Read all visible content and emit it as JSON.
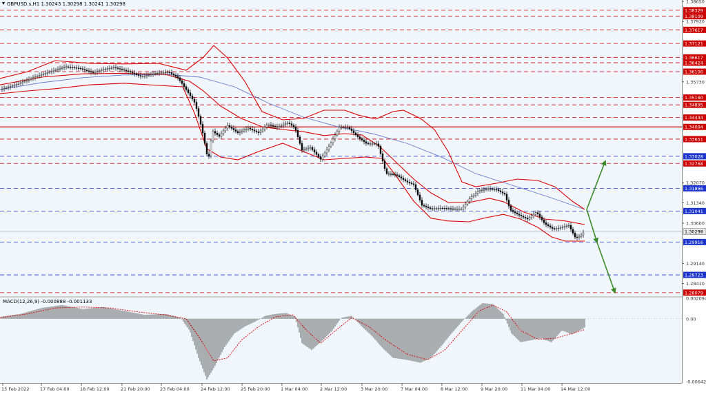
{
  "window": {
    "symbol_line": "GBPUSD.s,H1  1.30243 1.30298 1.30241 1.30298",
    "macd_line": "MACD(12,26,9) -0.000888 -0.001133"
  },
  "colors": {
    "background": "#f0f6fc",
    "grid_red": "#cc0000",
    "grid_blue": "#1a33cc",
    "bollinger": "#dd0000",
    "ma_line": "#6677cc",
    "arrow": "#3a8a2a",
    "price_tag": "#e8e8e8"
  },
  "chart_data": [
    {
      "type": "candlestick",
      "title": "GBPUSD.s,H1",
      "ylim": [
        1.2795,
        1.3865
      ],
      "price_ticks": [
        "1.38650",
        "1.37920",
        "1.35730",
        "1.32070",
        "1.31340",
        "1.30600",
        "1.29140",
        "1.28410"
      ],
      "x_labels": [
        "15 Feb 2022",
        "17 Feb 04:00",
        "18 Feb 12:00",
        "21 Feb 20:00",
        "23 Feb 04:00",
        "24 Feb 12:00",
        "25 Feb 20:00",
        "1 Mar 04:00",
        "2 Mar 12:00",
        "3 Mar 20:00",
        "7 Mar 04:00",
        "8 Mar 12:00",
        "9 Mar 20:00",
        "11 Mar 04:00",
        "14 Mar 12:00"
      ],
      "current_price": "1.30298",
      "last_quote": {
        "bid": 1.30243,
        "high": 1.30298,
        "low": 1.30241,
        "close": 1.30298
      },
      "horizontal_levels": [
        {
          "label": "1.38329",
          "value": 1.38329,
          "color": "red"
        },
        {
          "label": "1.38109",
          "value": 1.38109,
          "color": "red"
        },
        {
          "label": "1.37617",
          "value": 1.37617,
          "color": "red"
        },
        {
          "label": "1.37121",
          "value": 1.37121,
          "color": "red"
        },
        {
          "label": "1.36617",
          "value": 1.36617,
          "color": "red"
        },
        {
          "label": "1.36424",
          "value": 1.36424,
          "color": "red"
        },
        {
          "label": "1.36100",
          "value": 1.361,
          "color": "red"
        },
        {
          "label": "1.35160",
          "value": 1.3516,
          "color": "red"
        },
        {
          "label": "1.34895",
          "value": 1.34895,
          "color": "red"
        },
        {
          "label": "1.34434",
          "value": 1.34434,
          "color": "red"
        },
        {
          "label": "1.34094",
          "value": 1.34094,
          "color": "red",
          "solid": true
        },
        {
          "label": "1.33651",
          "value": 1.33651,
          "color": "red"
        },
        {
          "label": "1.33028",
          "value": 1.33028,
          "color": "blue"
        },
        {
          "label": "1.32768",
          "value": 1.32768,
          "color": "red"
        },
        {
          "label": "1.31866",
          "value": 1.31866,
          "color": "blue"
        },
        {
          "label": "1.31041",
          "value": 1.31041,
          "color": "blue"
        },
        {
          "label": "1.29916",
          "value": 1.29916,
          "color": "blue"
        },
        {
          "label": "1.28723",
          "value": 1.28723,
          "color": "blue"
        },
        {
          "label": "1.28079",
          "value": 1.28079,
          "color": "red"
        }
      ],
      "price_path": [
        [
          0,
          1.3545
        ],
        [
          15,
          1.3556
        ],
        [
          35,
          1.3575
        ],
        [
          55,
          1.3595
        ],
        [
          75,
          1.3612
        ],
        [
          95,
          1.3628
        ],
        [
          115,
          1.3622
        ],
        [
          135,
          1.3606
        ],
        [
          150,
          1.3618
        ],
        [
          165,
          1.3625
        ],
        [
          185,
          1.3612
        ],
        [
          205,
          1.3592
        ],
        [
          225,
          1.3604
        ],
        [
          245,
          1.3608
        ],
        [
          258,
          1.3588
        ],
        [
          270,
          1.3545
        ],
        [
          283,
          1.3495
        ],
        [
          293,
          1.34
        ],
        [
          302,
          1.3285
        ],
        [
          308,
          1.3395
        ],
        [
          318,
          1.3375
        ],
        [
          330,
          1.3415
        ],
        [
          345,
          1.3388
        ],
        [
          360,
          1.3405
        ],
        [
          375,
          1.3388
        ],
        [
          388,
          1.3418
        ],
        [
          402,
          1.3408
        ],
        [
          418,
          1.3425
        ],
        [
          428,
          1.3405
        ],
        [
          438,
          1.3325
        ],
        [
          450,
          1.3335
        ],
        [
          465,
          1.3292
        ],
        [
          478,
          1.3342
        ],
        [
          492,
          1.3408
        ],
        [
          505,
          1.3408
        ],
        [
          518,
          1.3375
        ],
        [
          532,
          1.3348
        ],
        [
          548,
          1.3348
        ],
        [
          560,
          1.324
        ],
        [
          575,
          1.3235
        ],
        [
          590,
          1.321
        ],
        [
          600,
          1.32
        ],
        [
          612,
          1.3125
        ],
        [
          625,
          1.3112
        ],
        [
          640,
          1.3115
        ],
        [
          655,
          1.3112
        ],
        [
          670,
          1.3112
        ],
        [
          682,
          1.3152
        ],
        [
          695,
          1.3178
        ],
        [
          708,
          1.3185
        ],
        [
          720,
          1.3182
        ],
        [
          732,
          1.3165
        ],
        [
          740,
          1.3108
        ],
        [
          752,
          1.309
        ],
        [
          765,
          1.3075
        ],
        [
          778,
          1.31
        ],
        [
          790,
          1.3058
        ],
        [
          803,
          1.3038
        ],
        [
          815,
          1.3045
        ],
        [
          825,
          1.3052
        ],
        [
          835,
          1.3005
        ],
        [
          842,
          1.3015
        ],
        [
          848,
          1.30298
        ]
      ],
      "bollinger_upper": [
        [
          0,
          1.3585
        ],
        [
          40,
          1.361
        ],
        [
          80,
          1.365
        ],
        [
          130,
          1.364
        ],
        [
          180,
          1.3638
        ],
        [
          230,
          1.364
        ],
        [
          270,
          1.3615
        ],
        [
          295,
          1.3662
        ],
        [
          310,
          1.3705
        ],
        [
          330,
          1.366
        ],
        [
          355,
          1.3575
        ],
        [
          380,
          1.3465
        ],
        [
          410,
          1.3435
        ],
        [
          440,
          1.344
        ],
        [
          470,
          1.347
        ],
        [
          500,
          1.347
        ],
        [
          520,
          1.3452
        ],
        [
          545,
          1.3438
        ],
        [
          570,
          1.3465
        ],
        [
          585,
          1.347
        ],
        [
          610,
          1.344
        ],
        [
          630,
          1.34
        ],
        [
          650,
          1.332
        ],
        [
          670,
          1.321
        ],
        [
          690,
          1.3192
        ],
        [
          720,
          1.3205
        ],
        [
          750,
          1.322
        ],
        [
          780,
          1.3215
        ],
        [
          805,
          1.3192
        ],
        [
          830,
          1.314
        ],
        [
          848,
          1.311
        ]
      ],
      "bollinger_middle": [
        [
          0,
          1.3562
        ],
        [
          60,
          1.359
        ],
        [
          120,
          1.3602
        ],
        [
          180,
          1.3604
        ],
        [
          240,
          1.36
        ],
        [
          275,
          1.3575
        ],
        [
          295,
          1.354
        ],
        [
          320,
          1.3485
        ],
        [
          350,
          1.344
        ],
        [
          380,
          1.341
        ],
        [
          410,
          1.34
        ],
        [
          440,
          1.3392
        ],
        [
          470,
          1.3378
        ],
        [
          500,
          1.3385
        ],
        [
          525,
          1.338
        ],
        [
          550,
          1.334
        ],
        [
          575,
          1.328
        ],
        [
          600,
          1.322
        ],
        [
          625,
          1.317
        ],
        [
          650,
          1.3135
        ],
        [
          680,
          1.3135
        ],
        [
          710,
          1.315
        ],
        [
          730,
          1.3138
        ],
        [
          760,
          1.31
        ],
        [
          790,
          1.3075
        ],
        [
          820,
          1.3068
        ],
        [
          848,
          1.3055
        ]
      ],
      "bollinger_lower": [
        [
          0,
          1.353
        ],
        [
          40,
          1.354
        ],
        [
          80,
          1.3548
        ],
        [
          130,
          1.3562
        ],
        [
          180,
          1.3568
        ],
        [
          230,
          1.356
        ],
        [
          265,
          1.3555
        ],
        [
          282,
          1.346
        ],
        [
          300,
          1.333
        ],
        [
          320,
          1.33
        ],
        [
          345,
          1.329
        ],
        [
          375,
          1.332
        ],
        [
          410,
          1.335
        ],
        [
          440,
          1.332
        ],
        [
          470,
          1.329
        ],
        [
          500,
          1.3295
        ],
        [
          530,
          1.33
        ],
        [
          555,
          1.3295
        ],
        [
          575,
          1.323
        ],
        [
          600,
          1.314
        ],
        [
          625,
          1.3078
        ],
        [
          650,
          1.3068
        ],
        [
          680,
          1.3065
        ],
        [
          705,
          1.308
        ],
        [
          730,
          1.3092
        ],
        [
          755,
          1.3075
        ],
        [
          780,
          1.3045
        ],
        [
          800,
          1.301
        ],
        [
          820,
          1.2995
        ],
        [
          848,
          1.2995
        ]
      ],
      "moving_average": [
        [
          0,
          1.3545
        ],
        [
          60,
          1.357
        ],
        [
          120,
          1.3588
        ],
        [
          180,
          1.3598
        ],
        [
          240,
          1.36
        ],
        [
          290,
          1.359
        ],
        [
          340,
          1.3555
        ],
        [
          390,
          1.3495
        ],
        [
          440,
          1.3445
        ],
        [
          490,
          1.341
        ],
        [
          540,
          1.3385
        ],
        [
          590,
          1.335
        ],
        [
          640,
          1.33
        ],
        [
          690,
          1.324
        ],
        [
          740,
          1.32
        ],
        [
          790,
          1.316
        ],
        [
          848,
          1.311
        ]
      ],
      "forecast_arrows": [
        {
          "from": [
            851,
            1.311
          ],
          "to": [
            878,
            1.3286
          ]
        },
        {
          "from": [
            851,
            1.311
          ],
          "to": [
            866,
            1.299
          ]
        },
        {
          "from": [
            866,
            1.299
          ],
          "to": [
            892,
            1.2808
          ]
        }
      ]
    },
    {
      "type": "histogram",
      "title": "MACD(12,26,9)",
      "ylim": [
        -0.006421,
        0.002094
      ],
      "ticks": [
        "0.002094",
        "0.00",
        "-0.006421"
      ],
      "macd_values": [
        [
          0,
          0.0002
        ],
        [
          30,
          0.0005
        ],
        [
          60,
          0.0011
        ],
        [
          90,
          0.0014
        ],
        [
          120,
          0.001
        ],
        [
          150,
          0.0012
        ],
        [
          180,
          0.0008
        ],
        [
          210,
          0.0004
        ],
        [
          240,
          0.0005
        ],
        [
          262,
          0.0001
        ],
        [
          275,
          -0.0012
        ],
        [
          288,
          -0.004
        ],
        [
          300,
          -0.0062
        ],
        [
          312,
          -0.0048
        ],
        [
          325,
          -0.003
        ],
        [
          340,
          -0.0015
        ],
        [
          355,
          -0.0008
        ],
        [
          370,
          -0.0003
        ],
        [
          385,
          0.0003
        ],
        [
          400,
          0.0005
        ],
        [
          415,
          0.0006
        ],
        [
          428,
          0.0002
        ],
        [
          438,
          -0.0025
        ],
        [
          452,
          -0.0032
        ],
        [
          468,
          -0.0022
        ],
        [
          482,
          -0.0012
        ],
        [
          495,
          0.0001
        ],
        [
          510,
          0.0003
        ],
        [
          525,
          -0.0008
        ],
        [
          540,
          -0.0018
        ],
        [
          555,
          -0.003
        ],
        [
          570,
          -0.004
        ],
        [
          590,
          -0.0042
        ],
        [
          610,
          -0.0045
        ],
        [
          625,
          -0.004
        ],
        [
          640,
          -0.0028
        ],
        [
          655,
          -0.0015
        ],
        [
          670,
          -0.0003
        ],
        [
          685,
          0.0008
        ],
        [
          700,
          0.0016
        ],
        [
          715,
          0.0015
        ],
        [
          730,
          0.0005
        ],
        [
          742,
          -0.0015
        ],
        [
          755,
          -0.0024
        ],
        [
          770,
          -0.0022
        ],
        [
          785,
          -0.002
        ],
        [
          800,
          -0.0024
        ],
        [
          815,
          -0.0012
        ],
        [
          830,
          -0.0016
        ],
        [
          848,
          -0.0009
        ]
      ],
      "signal_values": [
        [
          0,
          0.0001
        ],
        [
          40,
          0.0005
        ],
        [
          80,
          0.0011
        ],
        [
          120,
          0.0012
        ],
        [
          160,
          0.0011
        ],
        [
          200,
          0.0007
        ],
        [
          240,
          0.0004
        ],
        [
          270,
          0.0
        ],
        [
          290,
          -0.002
        ],
        [
          310,
          -0.0043
        ],
        [
          330,
          -0.004
        ],
        [
          350,
          -0.0022
        ],
        [
          375,
          -0.0008
        ],
        [
          400,
          0.0002
        ],
        [
          425,
          0.0004
        ],
        [
          445,
          -0.0012
        ],
        [
          465,
          -0.0025
        ],
        [
          490,
          -0.001
        ],
        [
          510,
          0.0001
        ],
        [
          535,
          -0.0008
        ],
        [
          560,
          -0.0022
        ],
        [
          590,
          -0.0036
        ],
        [
          620,
          -0.0042
        ],
        [
          645,
          -0.0032
        ],
        [
          670,
          -0.0012
        ],
        [
          695,
          0.0008
        ],
        [
          715,
          0.0014
        ],
        [
          735,
          0.0007
        ],
        [
          755,
          -0.0012
        ],
        [
          780,
          -0.0021
        ],
        [
          805,
          -0.002
        ],
        [
          830,
          -0.0015
        ],
        [
          848,
          -0.0011
        ]
      ]
    }
  ]
}
